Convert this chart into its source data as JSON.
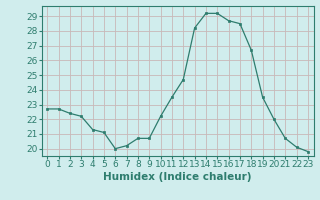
{
  "x": [
    0,
    1,
    2,
    3,
    4,
    5,
    6,
    7,
    8,
    9,
    10,
    11,
    12,
    13,
    14,
    15,
    16,
    17,
    18,
    19,
    20,
    21,
    22,
    23
  ],
  "y": [
    22.7,
    22.7,
    22.4,
    22.2,
    21.3,
    21.1,
    20.0,
    20.2,
    20.7,
    20.7,
    22.2,
    23.5,
    24.7,
    28.2,
    29.2,
    29.2,
    28.7,
    28.5,
    26.7,
    23.5,
    22.0,
    20.7,
    20.1,
    19.8
  ],
  "line_color": "#2e7d6e",
  "marker": "s",
  "marker_size": 2.0,
  "bg_color": "#d0eded",
  "grid_color": "#c8b8b8",
  "xlabel": "Humidex (Indice chaleur)",
  "ylim": [
    19.5,
    29.7
  ],
  "xlim": [
    -0.5,
    23.5
  ],
  "yticks": [
    20,
    21,
    22,
    23,
    24,
    25,
    26,
    27,
    28,
    29
  ],
  "xticks": [
    0,
    1,
    2,
    3,
    4,
    5,
    6,
    7,
    8,
    9,
    10,
    11,
    12,
    13,
    14,
    15,
    16,
    17,
    18,
    19,
    20,
    21,
    22,
    23
  ],
  "tick_color": "#2e7d6e",
  "axis_color": "#2e7d6e",
  "label_fontsize": 6.5,
  "xlabel_fontsize": 7.5
}
